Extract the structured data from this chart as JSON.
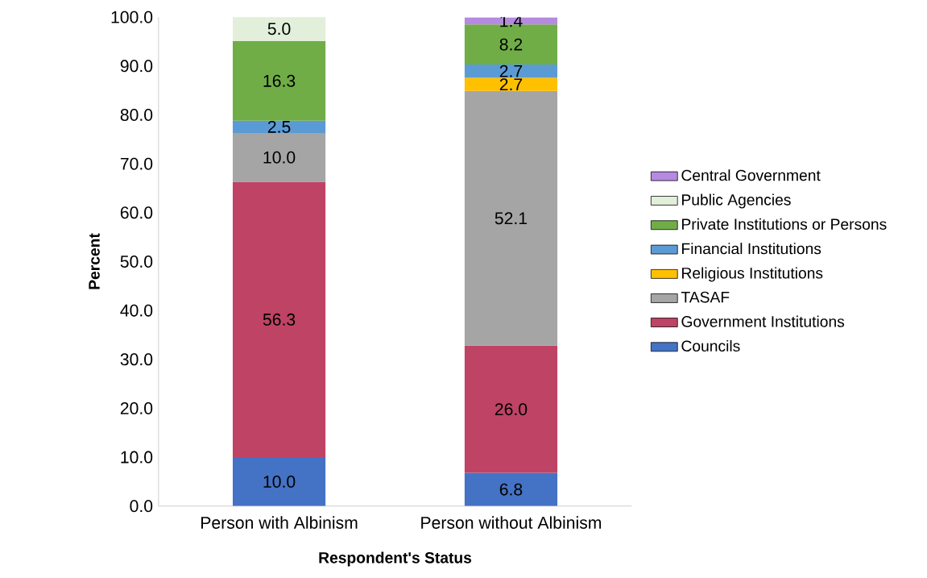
{
  "chart_data": {
    "type": "bar",
    "stacked": true,
    "xlabel": "Respondent's Status",
    "ylabel": "Percent",
    "categories": [
      "Person with Albinism",
      "Person without Albinism"
    ],
    "series": [
      {
        "name": "Councils",
        "color": "#4472c4",
        "values": [
          10.0,
          6.8
        ],
        "value_labels": [
          "10.0",
          "6.8"
        ]
      },
      {
        "name": "Government Institutions",
        "color": "#be4365",
        "values": [
          56.3,
          26.0
        ],
        "value_labels": [
          "56.3",
          "26.0"
        ]
      },
      {
        "name": "TASAF",
        "color": "#a5a5a5",
        "values": [
          10.0,
          52.1
        ],
        "value_labels": [
          "10.0",
          "52.1"
        ]
      },
      {
        "name": "Religious Institutions",
        "color": "#ffc000",
        "values": [
          null,
          2.7
        ],
        "value_labels": [
          null,
          "2.7"
        ]
      },
      {
        "name": "Financial Institutions",
        "color": "#5b9bd5",
        "values": [
          2.5,
          2.7
        ],
        "value_labels": [
          "2.5",
          "2.7"
        ]
      },
      {
        "name": "Private Institutions or Persons",
        "color": "#70ad47",
        "values": [
          16.3,
          8.2
        ],
        "value_labels": [
          "16.3",
          "8.2"
        ]
      },
      {
        "name": "Public Agencies",
        "color": "#e2efda",
        "values": [
          5.0,
          null
        ],
        "value_labels": [
          "5.0",
          null
        ]
      },
      {
        "name": "Central Government",
        "color": "#b58ae0",
        "values": [
          null,
          1.4
        ],
        "value_labels": [
          null,
          "1.4"
        ]
      }
    ],
    "ylim": [
      0,
      100
    ],
    "yticks": [
      {
        "value": 0,
        "label": "0.0"
      },
      {
        "value": 10,
        "label": "10.0"
      },
      {
        "value": 20,
        "label": "20.0"
      },
      {
        "value": 30,
        "label": "30.0"
      },
      {
        "value": 40,
        "label": "40.0"
      },
      {
        "value": 50,
        "label": "50.0"
      },
      {
        "value": 60,
        "label": "60.0"
      },
      {
        "value": 70,
        "label": "70.0"
      },
      {
        "value": 80,
        "label": "80.0"
      },
      {
        "value": 90,
        "label": "90.0"
      },
      {
        "value": 100,
        "label": "100.0"
      }
    ],
    "legend": "right",
    "grid": false
  }
}
